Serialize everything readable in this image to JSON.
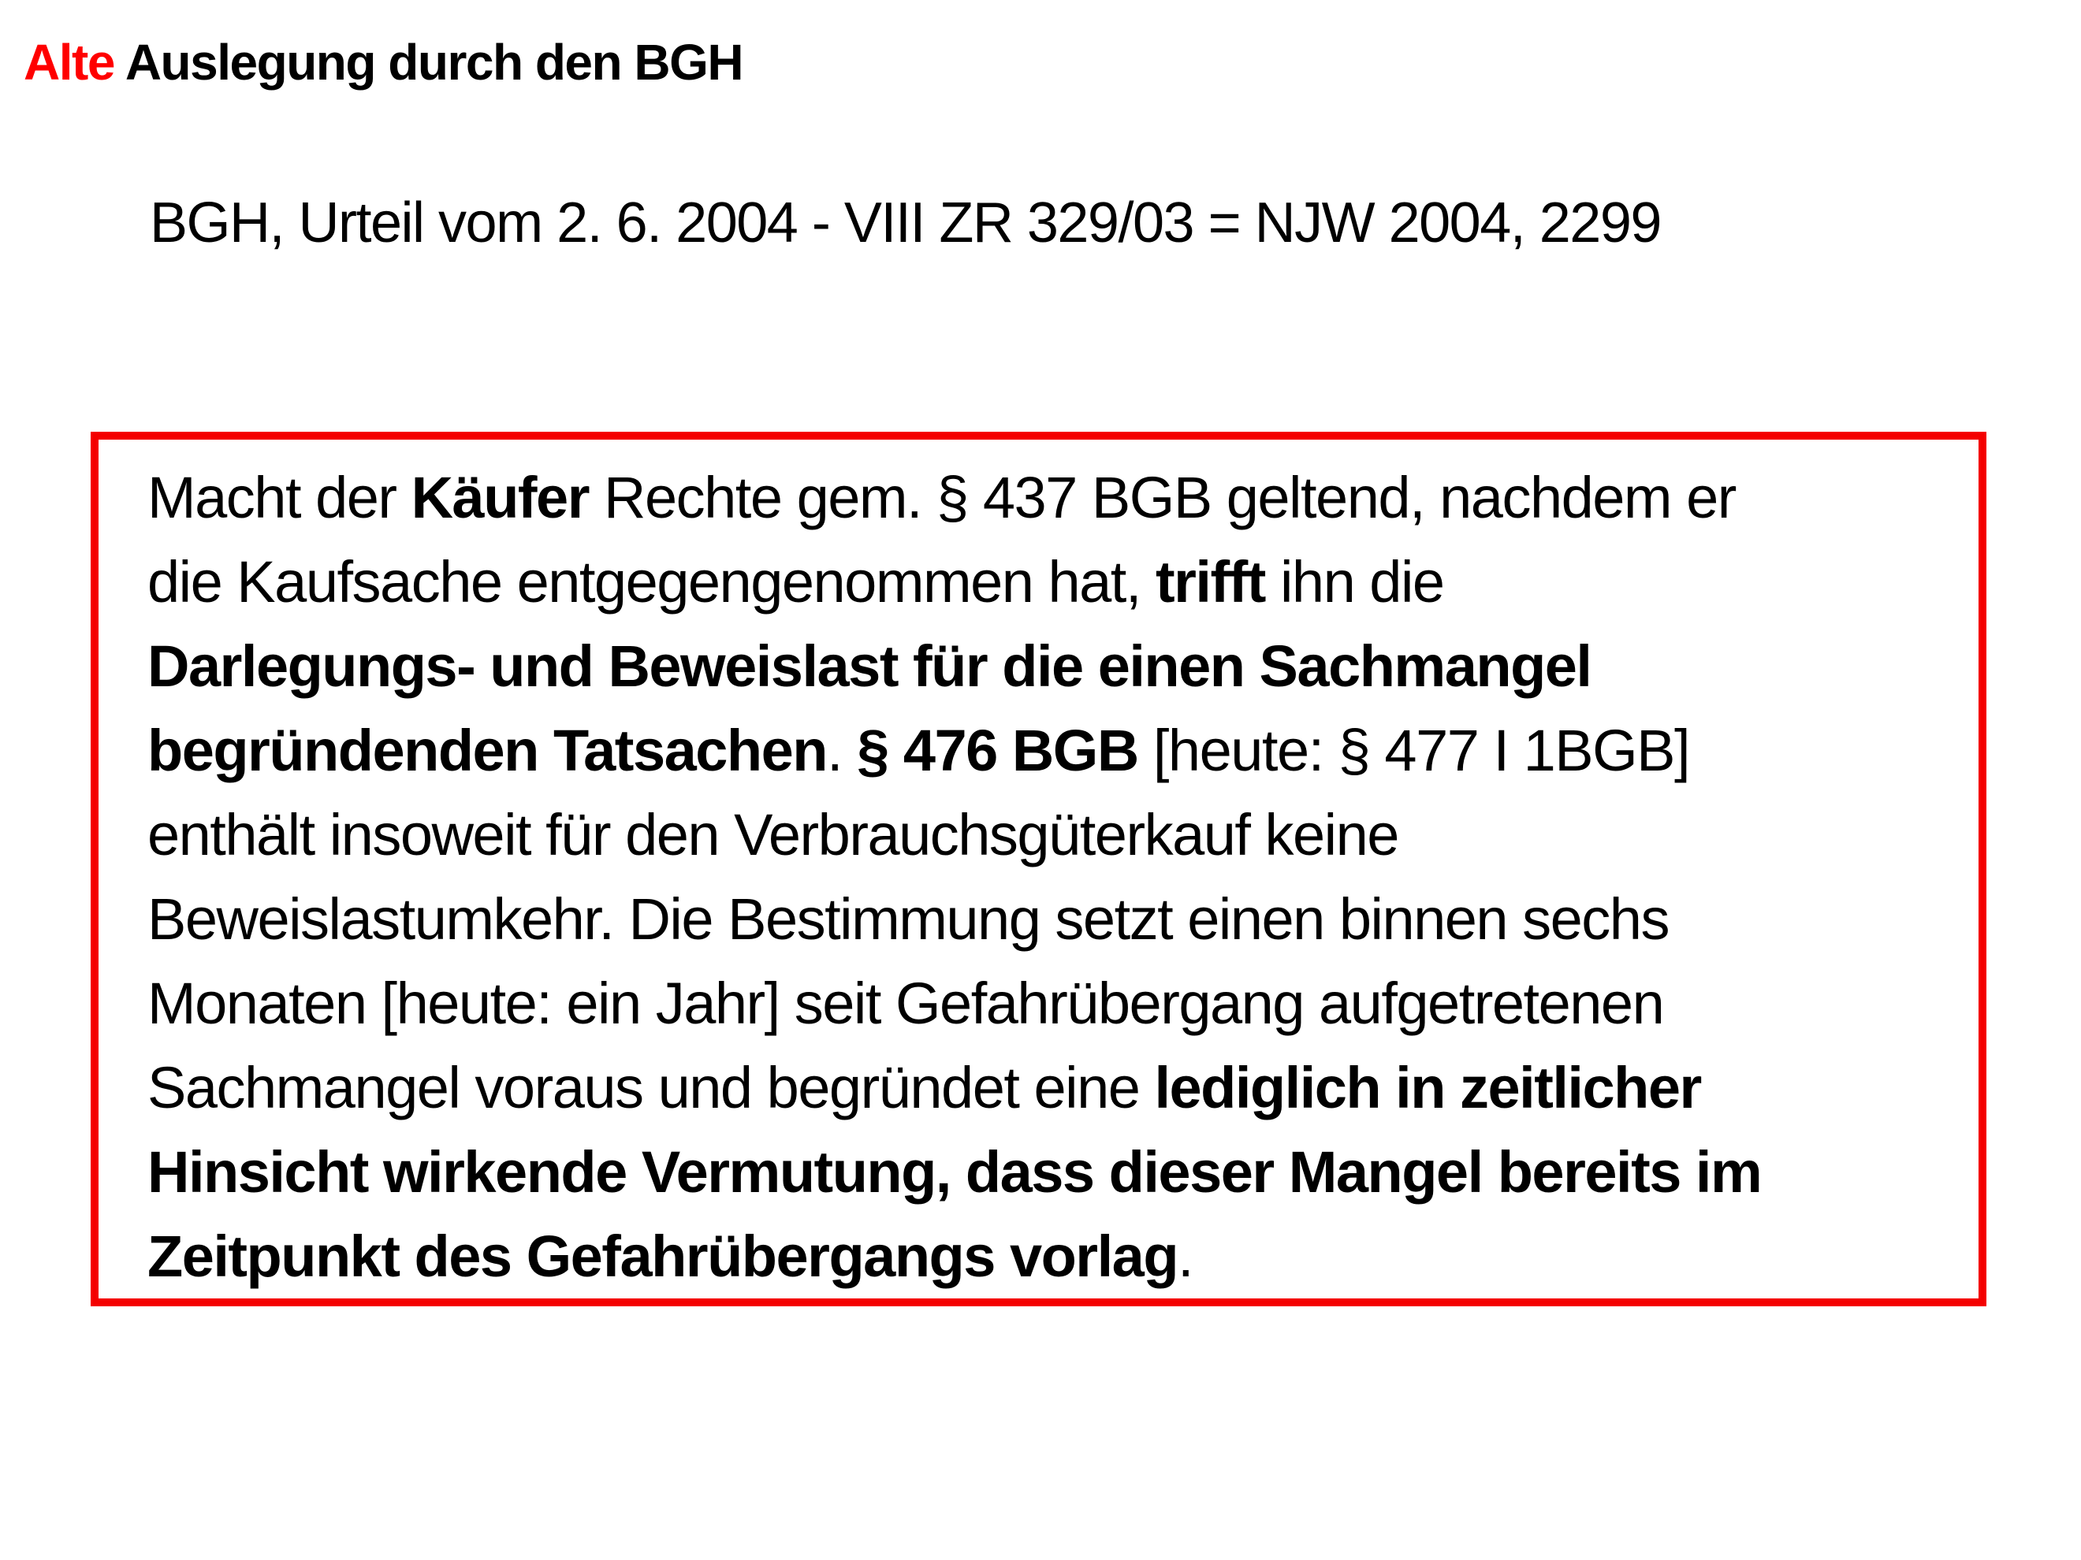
{
  "slide": {
    "title": {
      "highlight": "Alte",
      "rest": " Auslegung durch den BGH",
      "highlight_color": "#ff0000"
    },
    "subtitle": "BGH, Urteil vom 2. 6. 2004 - VIII ZR 329/03 = NJW 2004, 2299",
    "quote_box": {
      "border_color": "#f40000",
      "full_text": "Macht der Käufer Rechte gem. § 437 BGB geltend, nachdem er die Kaufsache entgegengenommen hat, trifft ihn die Darlegungs- und Beweislast für die einen Sachmangel begründenden Tatsachen. § 476 BGB [heute: § 477 I 1BGB] enthält insoweit für den Verbrauchsgüterkauf keine Beweislastumkehr. Die Bestimmung setzt einen binnen sechs Monaten [heute: ein Jahr] seit Gefahrübergang aufgetretenen Sachmangel voraus und begründet eine lediglich in zeitlicher Hinsicht wirkende Vermutung, dass dieser Mangel bereits im Zeitpunkt des Gefahrübergangs vorlag.",
      "lines": [
        [
          {
            "t": "Macht der ",
            "b": false
          },
          {
            "t": "Käufer",
            "b": true
          },
          {
            "t": " Rechte gem. § 437 BGB geltend, nachdem er",
            "b": false
          }
        ],
        [
          {
            "t": "die Kaufsache entgegengenommen hat, ",
            "b": false
          },
          {
            "t": "trifft",
            "b": true
          },
          {
            "t": " ihn die",
            "b": false
          }
        ],
        [
          {
            "t": "Darlegungs- und Beweislast für die einen Sachmangel",
            "b": true
          }
        ],
        [
          {
            "t": "begründenden Tatsachen",
            "b": true
          },
          {
            "t": ". ",
            "b": false
          },
          {
            "t": "§ 476 BGB",
            "b": true
          },
          {
            "t": " [heute: § 477 I 1BGB]",
            "b": false
          }
        ],
        [
          {
            "t": "enthält insoweit für den Verbrauchsgüterkauf keine",
            "b": false
          }
        ],
        [
          {
            "t": "Beweislastumkehr. Die Bestimmung setzt einen binnen sechs",
            "b": false
          }
        ],
        [
          {
            "t": "Monaten [heute: ein Jahr] seit Gefahrübergang aufgetretenen",
            "b": false
          }
        ],
        [
          {
            "t": "Sachmangel voraus und begründet eine ",
            "b": false
          },
          {
            "t": "lediglich in zeitlicher",
            "b": true
          }
        ],
        [
          {
            "t": "Hinsicht wirkende Vermutung, dass dieser Mangel bereits im",
            "b": true
          }
        ],
        [
          {
            "t": "Zeitpunkt des Gefahrübergangs vorlag",
            "b": true
          },
          {
            "t": ".",
            "b": false
          }
        ]
      ]
    }
  }
}
